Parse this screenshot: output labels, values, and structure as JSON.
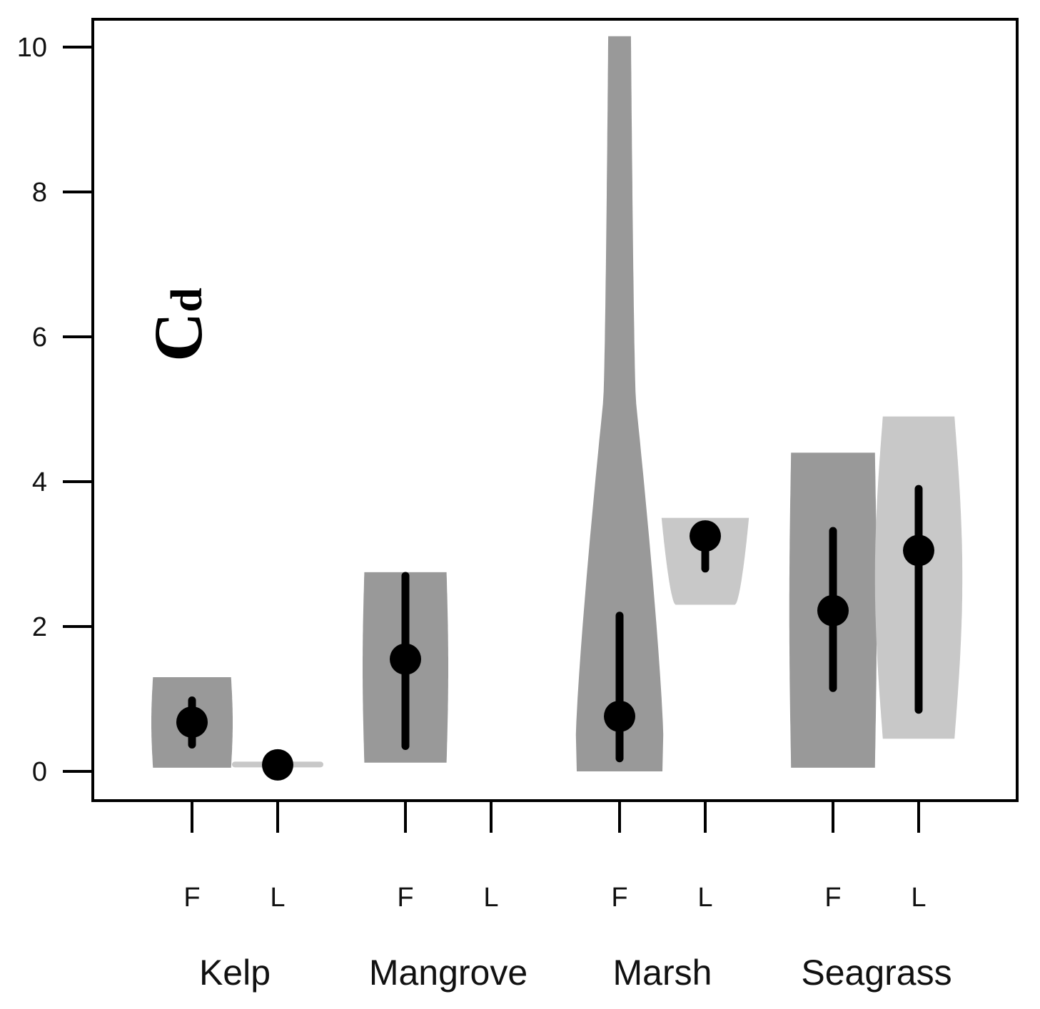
{
  "chart_data": {
    "type": "violin",
    "title": "",
    "xlabel": "",
    "ylabel": "Cd",
    "ylim": [
      0,
      10
    ],
    "yticks": [
      "0",
      "2",
      "4",
      "6",
      "8",
      "10"
    ],
    "grid": false,
    "legend": "none",
    "categories": [
      "Kelp",
      "Mangrove",
      "Marsh",
      "Seagrass"
    ],
    "groups": [
      "F",
      "L"
    ],
    "colors": {
      "F": "#999999",
      "L": "#c8c8c8",
      "marker": "#000000",
      "axis": "#000000"
    },
    "violins": [
      {
        "category": "Kelp",
        "group": "F",
        "label": "F",
        "min": 0.05,
        "max": 1.3,
        "median": 0.68,
        "low": 0.37,
        "high": 0.98,
        "max_halfwidth": 0.95,
        "shape": "box"
      },
      {
        "category": "Kelp",
        "group": "L",
        "label": "L",
        "min": 0.07,
        "max": 0.12,
        "median": 0.09,
        "low": 0.09,
        "high": 0.09,
        "max_halfwidth": 1.0,
        "shape": "flat"
      },
      {
        "category": "Mangrove",
        "group": "F",
        "label": "F",
        "min": 0.12,
        "max": 2.75,
        "median": 1.55,
        "low": 0.35,
        "high": 2.7,
        "max_halfwidth": 1.0,
        "shape": "box"
      },
      {
        "category": "Mangrove",
        "group": "L",
        "label": "L",
        "min": null,
        "max": null,
        "median": null,
        "low": null,
        "high": null,
        "max_halfwidth": 0,
        "shape": "none"
      },
      {
        "category": "Marsh",
        "group": "F",
        "label": "F",
        "min": 0.0,
        "max": 10.15,
        "median": 0.76,
        "low": 0.18,
        "high": 2.15,
        "max_halfwidth": 1.02,
        "shape": "skewed"
      },
      {
        "category": "Marsh",
        "group": "L",
        "label": "L",
        "min": 2.3,
        "max": 3.5,
        "median": 3.25,
        "low": 2.8,
        "high": 3.25,
        "max_halfwidth": 1.02,
        "shape": "topheavy"
      },
      {
        "category": "Seagrass",
        "group": "F",
        "label": "F",
        "min": 0.05,
        "max": 4.4,
        "median": 2.22,
        "low": 1.15,
        "high": 3.32,
        "max_halfwidth": 1.02,
        "shape": "box"
      },
      {
        "category": "Seagrass",
        "group": "L",
        "label": "L",
        "min": 0.45,
        "max": 4.9,
        "median": 3.05,
        "low": 0.85,
        "high": 3.9,
        "max_halfwidth": 1.02,
        "shape": "barrel"
      }
    ]
  }
}
